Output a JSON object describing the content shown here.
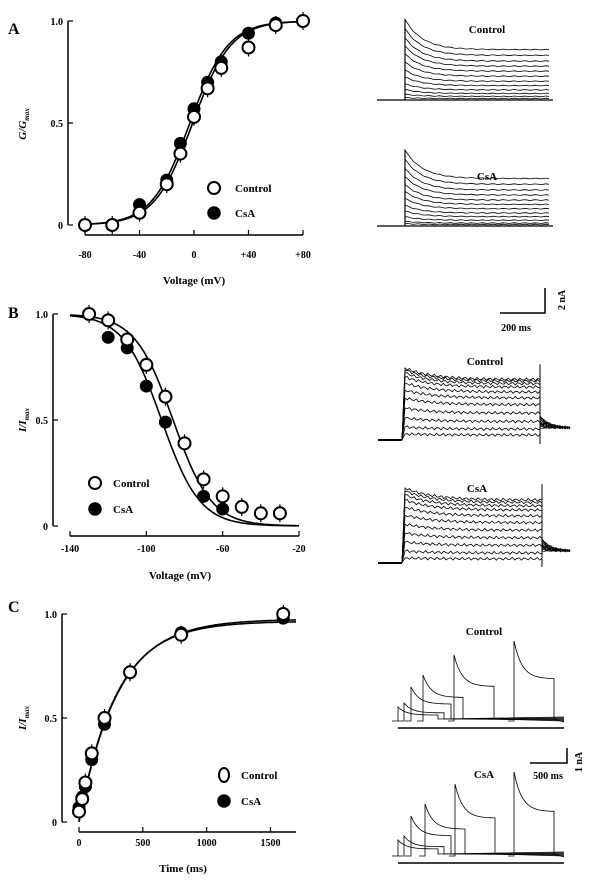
{
  "chart_data": [
    {
      "panel": "A",
      "type": "scatter",
      "xlabel": "Voltage (mV)",
      "ylabel_main": "G/G",
      "ylabel_sub": "max",
      "xlim": [
        -80,
        80
      ],
      "ylim": [
        0,
        1.0
      ],
      "xticks": [
        -80,
        -40,
        0,
        40,
        80
      ],
      "xtick_labels": [
        "-80",
        "-40",
        "0",
        "+40",
        "+80"
      ],
      "yticks": [
        0,
        0.5,
        1.0
      ],
      "ytick_labels": [
        "0",
        "0.5",
        "1.0"
      ],
      "series": [
        {
          "name": "Control",
          "marker": "open",
          "x": [
            -80,
            -60,
            -40,
            -20,
            -10,
            0,
            10,
            20,
            40,
            60,
            80
          ],
          "y": [
            0.0,
            0.0,
            0.06,
            0.2,
            0.35,
            0.53,
            0.67,
            0.77,
            0.87,
            0.98,
            1.0
          ]
        },
        {
          "name": "CsA",
          "marker": "filled",
          "x": [
            -40,
            -20,
            -10,
            0,
            10,
            20,
            40,
            60,
            80
          ],
          "y": [
            0.1,
            0.22,
            0.4,
            0.57,
            0.7,
            0.8,
            0.94,
            0.99,
            1.0
          ]
        }
      ],
      "fit": {
        "v_half": -3,
        "slope": 14
      },
      "traces": {
        "labels": [
          "Control",
          "CsA"
        ]
      }
    },
    {
      "panel": "B",
      "type": "scatter",
      "xlabel": "Voltage (mV)",
      "ylabel_main": "I/I",
      "ylabel_sub": "max",
      "xlim": [
        -140,
        -20
      ],
      "ylim": [
        0,
        1.0
      ],
      "xticks": [
        -140,
        -100,
        -60,
        -20
      ],
      "xtick_labels": [
        "-140",
        "-100",
        "-60",
        "-20"
      ],
      "yticks": [
        0,
        0.5,
        1.0
      ],
      "ytick_labels": [
        "0",
        "0.5",
        "1.0"
      ],
      "series": [
        {
          "name": "Control",
          "marker": "open",
          "x": [
            -130,
            -120,
            -110,
            -100,
            -90,
            -80,
            -70,
            -60,
            -50,
            -40,
            -30
          ],
          "y": [
            1.0,
            0.97,
            0.88,
            0.76,
            0.61,
            0.39,
            0.22,
            0.14,
            0.09,
            0.06,
            0.06
          ]
        },
        {
          "name": "CsA",
          "marker": "filled",
          "x": [
            -120,
            -110,
            -100,
            -90,
            -70,
            -60
          ],
          "y": [
            0.89,
            0.84,
            0.66,
            0.49,
            0.14,
            0.08
          ]
        }
      ],
      "fits": [
        {
          "series": "Control",
          "v_half": -86,
          "slope": 10
        },
        {
          "series": "CsA",
          "v_half": -92,
          "slope": 10
        }
      ],
      "scale_bar": {
        "time": "200 ms",
        "current": "2 nA"
      },
      "traces": {
        "labels": [
          "Control",
          "CsA"
        ]
      }
    },
    {
      "panel": "C",
      "type": "scatter",
      "xlabel": "Time (ms)",
      "ylabel_main": "I/I",
      "ylabel_sub": "max",
      "xlim": [
        0,
        1700
      ],
      "ylim": [
        0,
        1.0
      ],
      "xticks": [
        0,
        500,
        1000,
        1500
      ],
      "xtick_labels": [
        "0",
        "500",
        "1000",
        "1500"
      ],
      "yticks": [
        0,
        0.5,
        1.0
      ],
      "ytick_labels": [
        "0",
        "0.5",
        "1.0"
      ],
      "series": [
        {
          "name": "Control",
          "marker": "open",
          "x": [
            0,
            25,
            50,
            100,
            200,
            400,
            800,
            1600
          ],
          "y": [
            0.05,
            0.11,
            0.19,
            0.33,
            0.5,
            0.72,
            0.9,
            1.0
          ]
        },
        {
          "name": "CsA",
          "marker": "filled",
          "x": [
            0,
            25,
            50,
            100,
            200,
            400,
            800,
            1600
          ],
          "y": [
            0.07,
            0.12,
            0.17,
            0.3,
            0.47,
            0.72,
            0.91,
            0.98
          ]
        }
      ],
      "fit": {
        "tau": 300,
        "amplitude": 0.975
      },
      "scale_bar": {
        "time": "500 ms",
        "current": "1 nA"
      },
      "traces": {
        "labels": [
          "Control",
          "CsA"
        ]
      }
    }
  ]
}
